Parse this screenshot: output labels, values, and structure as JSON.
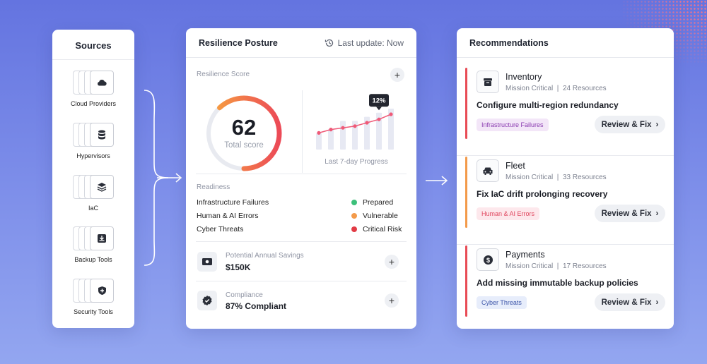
{
  "colors": {
    "accent_orange": "#f39a4a",
    "accent_red": "#e84b55",
    "prepared": "#3cc07a",
    "vulnerable": "#f39a4a",
    "critical": "#e23b45",
    "chart_line": "#ef5a78"
  },
  "sources": {
    "title": "Sources",
    "items": [
      {
        "label": "Cloud Providers",
        "icon": "cloud-icon"
      },
      {
        "label": "Hypervisors",
        "icon": "database-icon"
      },
      {
        "label": "IaC",
        "icon": "layers-icon"
      },
      {
        "label": "Backup Tools",
        "icon": "tray-download-icon"
      },
      {
        "label": "Security Tools",
        "icon": "shield-plus-icon"
      }
    ]
  },
  "resilience": {
    "title": "Resilience Posture",
    "last_update": "Last update: Now",
    "score_label": "Resilience Score",
    "score_value": "62",
    "score_sub": "Total score",
    "score_fraction": 0.62,
    "progress_label": "Last 7-day Progress",
    "progress_badge": "12%",
    "readiness_label": "Readiness",
    "readiness_items": [
      "Infrastructure Failures",
      "Human & AI Errors",
      "Cyber Threats"
    ],
    "legend": [
      "Prepared",
      "Vulnerable",
      "Critical Risk"
    ],
    "savings_label": "Potential Annual Savings",
    "savings_value": "$150K",
    "compliance_label": "Compliance",
    "compliance_value": "87% Compliant"
  },
  "chart_data": {
    "type": "line",
    "series": [
      {
        "values": [
          2,
          3,
          3.5,
          4,
          5,
          6,
          7.5
        ]
      }
    ],
    "bars": [
      4,
      5,
      7,
      7,
      8,
      9,
      10
    ],
    "annotations": [
      "12%"
    ],
    "xlabel": "Last 7-day Progress"
  },
  "recommendations": {
    "title": "Recommendations",
    "items": [
      {
        "name": "Inventory",
        "meta": "Mission Critical  |  24 Resources",
        "title": "Configure multi-region redundancy",
        "tag": "Infrastructure Failures",
        "button": "Review & Fix",
        "icon": "inventory-box-icon",
        "bar_color": "#e84b55",
        "tag_bg": "#f3e6f8",
        "tag_fg": "#8a3bb0"
      },
      {
        "name": "Fleet",
        "meta": "Mission Critical  |  33 Resources",
        "title": "Fix IaC drift prolonging recovery",
        "tag": "Human & AI Errors",
        "button": "Review & Fix",
        "icon": "car-icon",
        "bar_color": "#f39a4a",
        "tag_bg": "#fde8ec",
        "tag_fg": "#e0475f"
      },
      {
        "name": "Payments",
        "meta": "Mission Critical  |  17 Resources",
        "title": "Add missing immutable backup policies",
        "tag": "Cyber Threats",
        "button": "Review & Fix",
        "icon": "dollar-icon",
        "bar_color": "#e84b55",
        "tag_bg": "#e7edfb",
        "tag_fg": "#3b54a8"
      }
    ]
  }
}
